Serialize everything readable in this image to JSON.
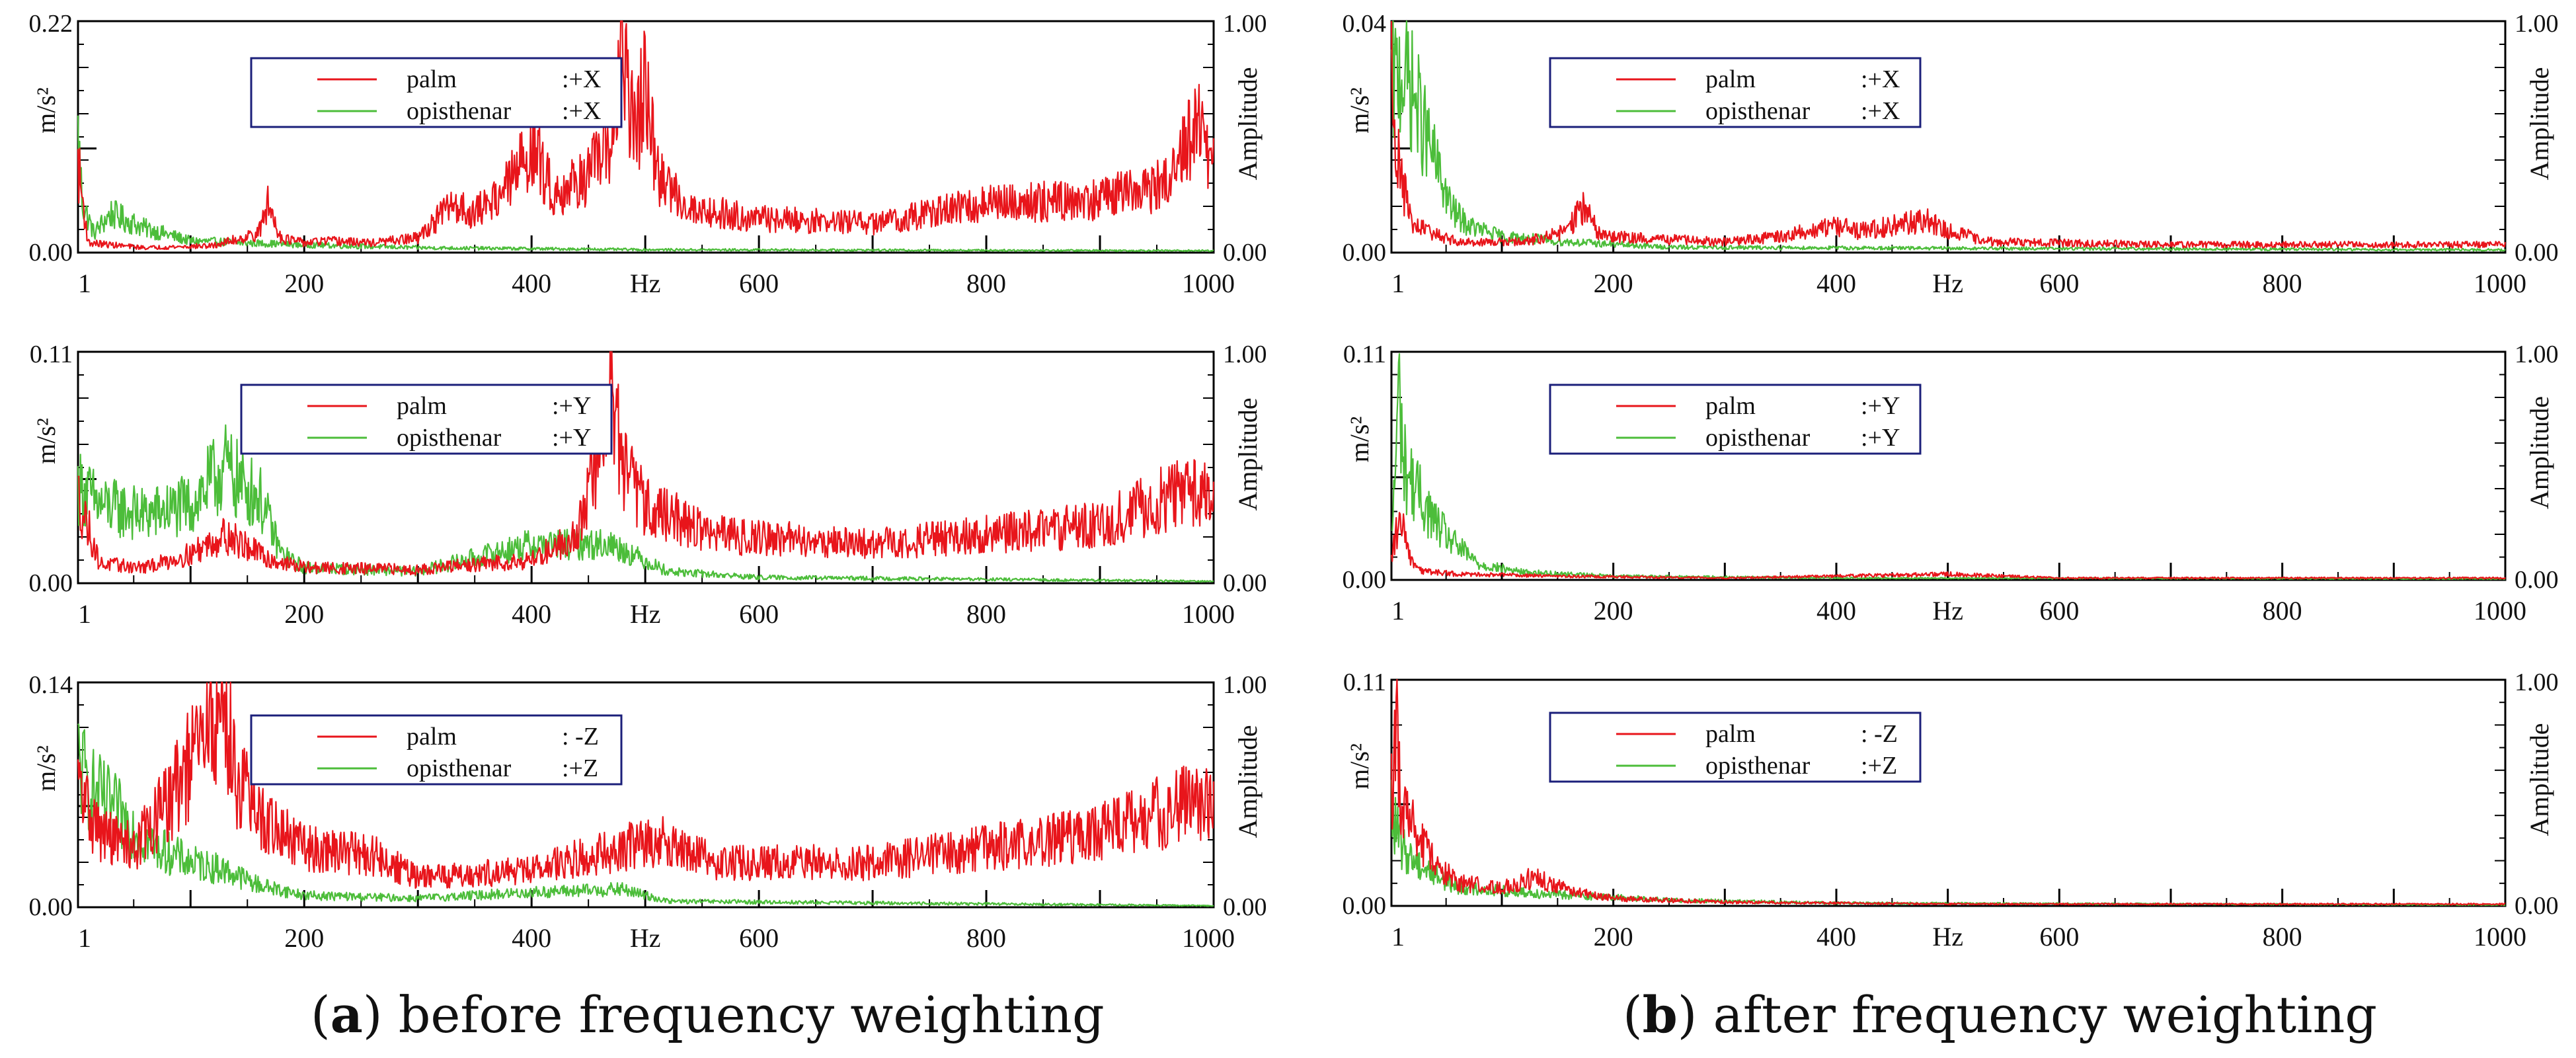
{
  "captions": [
    {
      "letter": "a",
      "text": "before frequency weighting"
    },
    {
      "letter": "b",
      "text": "after frequency weighting"
    }
  ],
  "colors": {
    "palm": "#e8151b",
    "opisthenar": "#4cbd3a",
    "legend_border": "#1b1f7a",
    "axis": "#000000"
  },
  "chart_data": [
    {
      "id": "a1",
      "type": "line",
      "xlabel": "Hz",
      "ylabel": "m/s²",
      "y2label": "Amplitude",
      "xlim": [
        1,
        1000
      ],
      "ylim": [
        0,
        0.22
      ],
      "y2lim": [
        0,
        1
      ],
      "x_ticks": [
        "1",
        "200",
        "400",
        "Hz",
        "600",
        "800",
        "1000"
      ],
      "y_ticks": [
        "0.00",
        "0.22"
      ],
      "y2_ticks": [
        "0.00",
        "1.00"
      ],
      "grid": false,
      "legend_position": "upper-left",
      "series": [
        {
          "name": "palm",
          "axis": ":+X",
          "color": "red",
          "peaks": [
            [
              1,
              0.09
            ],
            [
              10,
              0.01
            ],
            [
              60,
              0.005
            ],
            [
              120,
              0.007
            ],
            [
              160,
              0.02
            ],
            [
              168,
              0.05
            ],
            [
              180,
              0.015
            ],
            [
              200,
              0.01
            ],
            [
              220,
              0.012
            ],
            [
              260,
              0.01
            ],
            [
              300,
              0.015
            ],
            [
              330,
              0.05
            ],
            [
              350,
              0.04
            ],
            [
              380,
              0.07
            ],
            [
              400,
              0.11
            ],
            [
              420,
              0.06
            ],
            [
              450,
              0.08
            ],
            [
              470,
              0.11
            ],
            [
              480,
              0.22
            ],
            [
              490,
              0.12
            ],
            [
              500,
              0.17
            ],
            [
              510,
              0.08
            ],
            [
              540,
              0.045
            ],
            [
              600,
              0.035
            ],
            [
              700,
              0.03
            ],
            [
              800,
              0.05
            ],
            [
              900,
              0.055
            ],
            [
              960,
              0.07
            ],
            [
              985,
              0.13
            ],
            [
              1000,
              0.09
            ]
          ]
        },
        {
          "name": "opisthenar",
          "axis": ":+X",
          "color": "green",
          "peaks": [
            [
              1,
              0.12
            ],
            [
              5,
              0.05
            ],
            [
              15,
              0.02
            ],
            [
              30,
              0.04
            ],
            [
              60,
              0.025
            ],
            [
              100,
              0.012
            ],
            [
              150,
              0.01
            ],
            [
              200,
              0.008
            ],
            [
              300,
              0.005
            ],
            [
              400,
              0.004
            ],
            [
              500,
              0.003
            ],
            [
              1000,
              0.002
            ]
          ]
        }
      ]
    },
    {
      "id": "a2",
      "type": "line",
      "xlabel": "Hz",
      "ylabel": "m/s²",
      "y2label": "Amplitude",
      "xlim": [
        1,
        1000
      ],
      "ylim": [
        0,
        0.11
      ],
      "y2lim": [
        0,
        1
      ],
      "x_ticks": [
        "1",
        "200",
        "400",
        "Hz",
        "600",
        "800",
        "1000"
      ],
      "y_ticks": [
        "0.00",
        "0.11"
      ],
      "y2_ticks": [
        "0.00",
        "1.00"
      ],
      "grid": false,
      "legend_position": "upper-left",
      "series": [
        {
          "name": "palm",
          "axis": ":+Y",
          "color": "red",
          "peaks": [
            [
              1,
              0.045
            ],
            [
              20,
              0.01
            ],
            [
              60,
              0.008
            ],
            [
              100,
              0.015
            ],
            [
              130,
              0.025
            ],
            [
              170,
              0.012
            ],
            [
              200,
              0.008
            ],
            [
              300,
              0.007
            ],
            [
              400,
              0.012
            ],
            [
              440,
              0.025
            ],
            [
              460,
              0.07
            ],
            [
              470,
              0.105
            ],
            [
              480,
              0.06
            ],
            [
              500,
              0.04
            ],
            [
              560,
              0.025
            ],
            [
              700,
              0.02
            ],
            [
              800,
              0.025
            ],
            [
              900,
              0.03
            ],
            [
              985,
              0.05
            ],
            [
              1000,
              0.04
            ]
          ]
        },
        {
          "name": "opisthenar",
          "axis": ":+Y",
          "color": "green",
          "peaks": [
            [
              1,
              0.05
            ],
            [
              20,
              0.04
            ],
            [
              60,
              0.035
            ],
            [
              100,
              0.04
            ],
            [
              130,
              0.06
            ],
            [
              145,
              0.05
            ],
            [
              160,
              0.045
            ],
            [
              180,
              0.015
            ],
            [
              200,
              0.008
            ],
            [
              300,
              0.006
            ],
            [
              400,
              0.02
            ],
            [
              470,
              0.02
            ],
            [
              520,
              0.006
            ],
            [
              600,
              0.003
            ],
            [
              1000,
              0.001
            ]
          ]
        }
      ]
    },
    {
      "id": "a3",
      "type": "line",
      "xlabel": "Hz",
      "ylabel": "m/s²",
      "y2label": "Amplitude",
      "xlim": [
        1,
        1000
      ],
      "ylim": [
        0,
        0.14
      ],
      "y2lim": [
        0,
        1
      ],
      "x_ticks": [
        "1",
        "200",
        "400",
        "Hz",
        "600",
        "800",
        "1000"
      ],
      "y_ticks": [
        "0.00",
        "0.14"
      ],
      "y2_ticks": [
        "0.00",
        "1.00"
      ],
      "grid": false,
      "legend_position": "upper-left",
      "series": [
        {
          "name": "palm",
          "axis": ": -Z",
          "color": "red",
          "peaks": [
            [
              1,
              0.08
            ],
            [
              20,
              0.05
            ],
            [
              50,
              0.04
            ],
            [
              80,
              0.07
            ],
            [
              110,
              0.11
            ],
            [
              128,
              0.14
            ],
            [
              140,
              0.09
            ],
            [
              160,
              0.06
            ],
            [
              200,
              0.04
            ],
            [
              260,
              0.035
            ],
            [
              300,
              0.02
            ],
            [
              400,
              0.025
            ],
            [
              480,
              0.04
            ],
            [
              520,
              0.045
            ],
            [
              560,
              0.03
            ],
            [
              700,
              0.03
            ],
            [
              800,
              0.04
            ],
            [
              900,
              0.05
            ],
            [
              980,
              0.07
            ],
            [
              1000,
              0.065
            ]
          ]
        },
        {
          "name": "opisthenar",
          "axis": ":+Z",
          "color": "green",
          "peaks": [
            [
              1,
              0.1
            ],
            [
              10,
              0.08
            ],
            [
              40,
              0.06
            ],
            [
              70,
              0.04
            ],
            [
              100,
              0.03
            ],
            [
              130,
              0.025
            ],
            [
              160,
              0.015
            ],
            [
              200,
              0.008
            ],
            [
              300,
              0.006
            ],
            [
              400,
              0.01
            ],
            [
              480,
              0.012
            ],
            [
              520,
              0.004
            ],
            [
              1000,
              0.001
            ]
          ]
        }
      ]
    },
    {
      "id": "b1",
      "type": "line",
      "xlabel": "Hz",
      "ylabel": "m/s²",
      "y2label": "Amplitude",
      "xlim": [
        1,
        1000
      ],
      "ylim": [
        0,
        0.04
      ],
      "y2lim": [
        0,
        1
      ],
      "x_ticks": [
        "1",
        "200",
        "400",
        "Hz",
        "600",
        "800",
        "1000"
      ],
      "y_ticks": [
        "0.00",
        "0.04"
      ],
      "y2_ticks": [
        "0.00",
        "1.00"
      ],
      "grid": false,
      "legend_position": "upper-left",
      "series": [
        {
          "name": "palm",
          "axis": ":+X",
          "color": "red",
          "peaks": [
            [
              1,
              0.035
            ],
            [
              8,
              0.015
            ],
            [
              20,
              0.005
            ],
            [
              60,
              0.002
            ],
            [
              120,
              0.002
            ],
            [
              160,
              0.004
            ],
            [
              170,
              0.009
            ],
            [
              190,
              0.003
            ],
            [
              300,
              0.002
            ],
            [
              350,
              0.003
            ],
            [
              400,
              0.005
            ],
            [
              420,
              0.004
            ],
            [
              480,
              0.006
            ],
            [
              500,
              0.004
            ],
            [
              540,
              0.002
            ],
            [
              700,
              0.0015
            ],
            [
              1000,
              0.0015
            ]
          ]
        },
        {
          "name": "opisthenar",
          "axis": ":+X",
          "color": "green",
          "peaks": [
            [
              1,
              0.03
            ],
            [
              10,
              0.035
            ],
            [
              20,
              0.03
            ],
            [
              35,
              0.02
            ],
            [
              55,
              0.008
            ],
            [
              70,
              0.005
            ],
            [
              100,
              0.003
            ],
            [
              160,
              0.002
            ],
            [
              250,
              0.001
            ],
            [
              500,
              0.0008
            ],
            [
              1000,
              0.0005
            ]
          ]
        }
      ]
    },
    {
      "id": "b2",
      "type": "line",
      "xlabel": "Hz",
      "ylabel": "m/s²",
      "y2label": "Amplitude",
      "xlim": [
        1,
        1000
      ],
      "ylim": [
        0,
        0.11
      ],
      "y2lim": [
        0,
        1
      ],
      "x_ticks": [
        "1",
        "200",
        "400",
        "Hz",
        "600",
        "800",
        "1000"
      ],
      "y_ticks": [
        "0.00",
        "0.11"
      ],
      "y2_ticks": [
        "0.00",
        "1.00"
      ],
      "grid": false,
      "legend_position": "upper-left",
      "series": [
        {
          "name": "palm",
          "axis": ":+Y",
          "color": "red",
          "peaks": [
            [
              1,
              0.01
            ],
            [
              5,
              0.025
            ],
            [
              10,
              0.03
            ],
            [
              15,
              0.015
            ],
            [
              25,
              0.005
            ],
            [
              60,
              0.003
            ],
            [
              150,
              0.002
            ],
            [
              300,
              0.001
            ],
            [
              500,
              0.003
            ],
            [
              600,
              0.001
            ],
            [
              1000,
              0.001
            ]
          ]
        },
        {
          "name": "opisthenar",
          "axis": ":+Y",
          "color": "green",
          "peaks": [
            [
              1,
              0.02
            ],
            [
              8,
              0.1
            ],
            [
              12,
              0.06
            ],
            [
              25,
              0.045
            ],
            [
              40,
              0.03
            ],
            [
              55,
              0.02
            ],
            [
              80,
              0.008
            ],
            [
              120,
              0.004
            ],
            [
              200,
              0.002
            ],
            [
              400,
              0.001
            ],
            [
              1000,
              0.0005
            ]
          ]
        }
      ]
    },
    {
      "id": "b3",
      "type": "line",
      "xlabel": "Hz",
      "ylabel": "m/s²",
      "y2label": "Amplitude",
      "xlim": [
        1,
        1000
      ],
      "ylim": [
        0,
        0.11
      ],
      "y2lim": [
        0,
        1
      ],
      "x_ticks": [
        "1",
        "200",
        "400",
        "Hz",
        "600",
        "800",
        "1000"
      ],
      "y_ticks": [
        "0.00",
        "0.11"
      ],
      "y2_ticks": [
        "0.00",
        "1.00"
      ],
      "grid": false,
      "legend_position": "upper-left",
      "series": [
        {
          "name": "palm",
          "axis": ": -Z",
          "color": "red",
          "peaks": [
            [
              1,
              0.06
            ],
            [
              5,
              0.1
            ],
            [
              10,
              0.05
            ],
            [
              30,
              0.03
            ],
            [
              60,
              0.012
            ],
            [
              100,
              0.01
            ],
            [
              130,
              0.015
            ],
            [
              160,
              0.008
            ],
            [
              200,
              0.004
            ],
            [
              300,
              0.002
            ],
            [
              500,
              0.001
            ],
            [
              1000,
              0.001
            ]
          ]
        },
        {
          "name": "opisthenar",
          "axis": ":+Z",
          "color": "green",
          "peaks": [
            [
              1,
              0.05
            ],
            [
              10,
              0.03
            ],
            [
              30,
              0.02
            ],
            [
              60,
              0.01
            ],
            [
              100,
              0.008
            ],
            [
              150,
              0.006
            ],
            [
              250,
              0.003
            ],
            [
              400,
              0.0015
            ],
            [
              1000,
              0.0005
            ]
          ]
        }
      ]
    }
  ]
}
